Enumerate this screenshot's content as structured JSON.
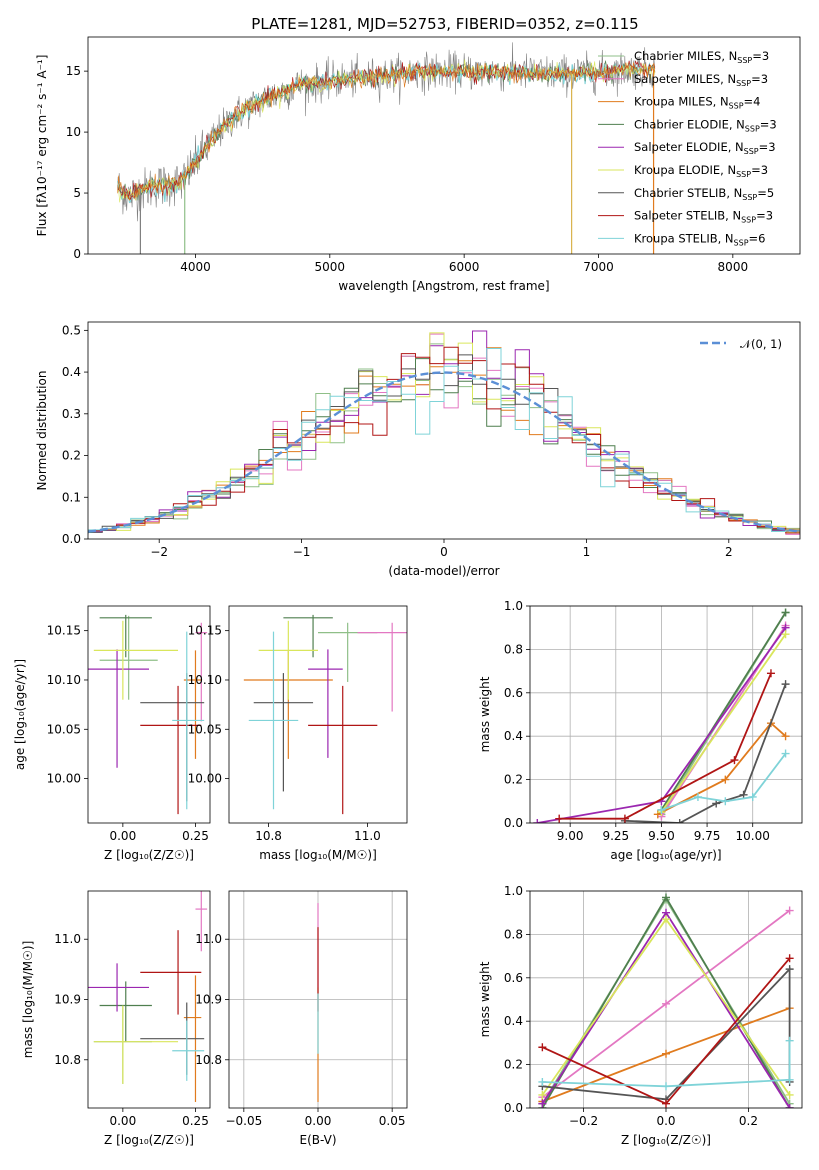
{
  "figure": {
    "title": "PLATE=1281, MJD=52753, FIBERID=0352, z=0.115"
  },
  "models": [
    {
      "name": "Chabrier MILES",
      "nssp": "3",
      "color": "#8fbf88"
    },
    {
      "name": "Salpeter MILES",
      "nssp": "3",
      "color": "#e377c2"
    },
    {
      "name": "Kroupa MILES",
      "nssp": "4",
      "color": "#e07b1e"
    },
    {
      "name": "Chabrier ELODIE",
      "nssp": "3",
      "color": "#4f7f4f"
    },
    {
      "name": "Salpeter ELODIE",
      "nssp": "3",
      "color": "#9b27b0"
    },
    {
      "name": "Kroupa ELODIE",
      "nssp": "3",
      "color": "#d9e65c"
    },
    {
      "name": "Chabrier STELIB",
      "nssp": "5",
      "color": "#555555"
    },
    {
      "name": "Salpeter STELIB",
      "nssp": "3",
      "color": "#b01515"
    },
    {
      "name": "Kroupa STELIB",
      "nssp": "6",
      "color": "#7fd3d8"
    }
  ],
  "legend_nssp_prefix": "N",
  "legend_nssp_sub": "SSP",
  "chart_data": [
    {
      "id": "spectrum",
      "type": "line",
      "xlabel": "wavelength [Angstrom, rest frame]",
      "ylabel": "Flux [fλ10⁻¹⁷ erg cm⁻² s⁻¹ A⁻¹]",
      "xlim": [
        3200,
        8500
      ],
      "ylim": [
        0,
        17.8
      ],
      "xticks": [
        4000,
        5000,
        6000,
        7000,
        8000
      ],
      "yticks": [
        0,
        5,
        10,
        15
      ],
      "legend": "right",
      "curve": {
        "x": [
          3420,
          3500,
          3600,
          3700,
          3800,
          3900,
          4000,
          4100,
          4200,
          4300,
          4400,
          4500,
          4600,
          4700,
          4800,
          4900,
          5000,
          5200,
          5400,
          5600,
          5800,
          6000,
          6200,
          6400,
          6600,
          6800,
          7000,
          7200,
          7400
        ],
        "y": [
          5.5,
          4.7,
          5.2,
          5.6,
          5.7,
          5.9,
          7.5,
          9.0,
          10.3,
          11.4,
          12.0,
          12.6,
          13.1,
          13.5,
          13.9,
          14.0,
          14.2,
          14.4,
          14.6,
          14.9,
          15.0,
          15.0,
          14.9,
          14.9,
          14.8,
          14.8,
          14.9,
          15.1,
          15.2
        ]
      }
    },
    {
      "id": "residuals",
      "type": "bar",
      "xlabel": "(data-model)/error",
      "ylabel": "Normed distribution",
      "xlim": [
        -2.5,
        2.5
      ],
      "ylim": [
        0,
        0.52
      ],
      "xticks": [
        -2,
        -1,
        0,
        1,
        2
      ],
      "yticks": [
        0.0,
        0.1,
        0.2,
        0.3,
        0.4,
        0.5
      ],
      "legend_label": "𝒩(0, 1)",
      "legend": "top-right",
      "bin_width": 0.1
    },
    {
      "id": "age-vs-Z",
      "type": "scatter",
      "xlabel": "Z [log₁₀(Z/Z☉)]",
      "ylabel": "age  [log₁₀(age/yr)]",
      "xlim": [
        -0.12,
        0.3
      ],
      "ylim": [
        9.955,
        10.175
      ],
      "xticks": [
        0.0,
        0.25
      ],
      "yticks": [
        10.0,
        10.05,
        10.1,
        10.15
      ]
    },
    {
      "id": "age-vs-mass",
      "type": "scatter",
      "xlabel": "mass [log₁₀(M/M☉)]",
      "ylabel": "",
      "xlim": [
        10.72,
        11.08
      ],
      "ylim": [
        9.955,
        10.175
      ],
      "xticks": [
        10.8,
        11.0
      ],
      "yticks": [
        10.0,
        10.05,
        10.1,
        10.15
      ]
    },
    {
      "id": "weight-vs-age",
      "type": "line",
      "xlabel": "age  [log₁₀(age/yr)]",
      "ylabel": "mass weight",
      "xlim": [
        8.78,
        10.27
      ],
      "ylim": [
        0,
        1
      ],
      "xticks": [
        9.0,
        9.25,
        9.5,
        9.75,
        10.0
      ],
      "yticks": [
        0.0,
        0.2,
        0.4,
        0.6,
        0.8,
        1.0
      ],
      "grid": true,
      "series": [
        {
          "model": 0,
          "points": [
            [
              9.5,
              0.04
            ],
            [
              10.18,
              0.97
            ]
          ]
        },
        {
          "model": 1,
          "points": [
            [
              9.5,
              0.03
            ],
            [
              10.18,
              0.91
            ]
          ]
        },
        {
          "model": 2,
          "points": [
            [
              9.48,
              0.04
            ],
            [
              9.85,
              0.2
            ],
            [
              10.1,
              0.46
            ],
            [
              10.18,
              0.4
            ]
          ]
        },
        {
          "model": 3,
          "points": [
            [
              9.5,
              0.06
            ],
            [
              10.18,
              0.97
            ]
          ]
        },
        {
          "model": 4,
          "points": [
            [
              8.82,
              0.0
            ],
            [
              9.5,
              0.1
            ],
            [
              10.18,
              0.9
            ]
          ]
        },
        {
          "model": 5,
          "points": [
            [
              9.5,
              0.05
            ],
            [
              10.18,
              0.87
            ]
          ]
        },
        {
          "model": 6,
          "points": [
            [
              9.3,
              0.01
            ],
            [
              9.6,
              0.0
            ],
            [
              9.8,
              0.09
            ],
            [
              9.95,
              0.13
            ],
            [
              10.18,
              0.64
            ]
          ]
        },
        {
          "model": 7,
          "points": [
            [
              8.94,
              0.02
            ],
            [
              9.3,
              0.02
            ],
            [
              9.9,
              0.29
            ],
            [
              10.1,
              0.69
            ]
          ]
        },
        {
          "model": 8,
          "points": [
            [
              9.5,
              0.06
            ],
            [
              9.7,
              0.12
            ],
            [
              9.85,
              0.1
            ],
            [
              10.0,
              0.12
            ],
            [
              10.18,
              0.32
            ]
          ]
        }
      ]
    },
    {
      "id": "mass-vs-Z",
      "type": "scatter",
      "xlabel": "Z [log₁₀(Z/Z☉)]",
      "ylabel": "mass [log₁₀(M/M☉)]",
      "xlim": [
        -0.12,
        0.3
      ],
      "ylim": [
        10.72,
        11.08
      ],
      "xticks": [
        0.0,
        0.25
      ],
      "yticks": [
        10.8,
        10.9,
        11.0
      ]
    },
    {
      "id": "mass-vs-ebv",
      "type": "scatter",
      "xlabel": "E(B-V)",
      "ylabel": "",
      "xlim": [
        -0.06,
        0.06
      ],
      "ylim": [
        10.72,
        11.08
      ],
      "xticks": [
        -0.05,
        0.0,
        0.05
      ],
      "yticks": [
        10.8,
        10.9,
        11.0
      ],
      "grid": true
    },
    {
      "id": "weight-vs-Z",
      "type": "line",
      "xlabel": "Z [log₁₀(Z/Z☉)]",
      "ylabel": "mass weight",
      "xlim": [
        -0.33,
        0.33
      ],
      "ylim": [
        0,
        1
      ],
      "xticks": [
        -0.2,
        0.0,
        0.2
      ],
      "yticks": [
        0.0,
        0.2,
        0.4,
        0.6,
        0.8,
        1.0
      ],
      "grid": true,
      "series": [
        {
          "model": 0,
          "points": [
            [
              -0.3,
              0.02
            ],
            [
              0.0,
              0.96
            ],
            [
              0.3,
              0.02
            ]
          ]
        },
        {
          "model": 1,
          "points": [
            [
              -0.3,
              0.05
            ],
            [
              0.0,
              0.48
            ],
            [
              0.3,
              0.91
            ]
          ]
        },
        {
          "model": 2,
          "points": [
            [
              -0.3,
              0.03
            ],
            [
              0.0,
              0.25
            ],
            [
              0.3,
              0.46
            ]
          ]
        },
        {
          "model": 3,
          "points": [
            [
              -0.3,
              0.0
            ],
            [
              0.0,
              0.97
            ],
            [
              0.3,
              0.0
            ]
          ]
        },
        {
          "model": 4,
          "points": [
            [
              -0.3,
              0.02
            ],
            [
              0.0,
              0.9
            ],
            [
              0.3,
              0.0
            ]
          ]
        },
        {
          "model": 5,
          "points": [
            [
              -0.3,
              0.06
            ],
            [
              0.0,
              0.87
            ],
            [
              0.3,
              0.06
            ]
          ]
        },
        {
          "model": 6,
          "points": [
            [
              -0.3,
              0.1
            ],
            [
              0.0,
              0.04
            ],
            [
              0.3,
              0.64
            ],
            [
              0.3,
              0.12
            ]
          ]
        },
        {
          "model": 7,
          "points": [
            [
              -0.3,
              0.28
            ],
            [
              0.0,
              0.02
            ],
            [
              0.3,
              0.69
            ]
          ]
        },
        {
          "model": 8,
          "points": [
            [
              -0.3,
              0.12
            ],
            [
              0.0,
              0.1
            ],
            [
              0.3,
              0.13
            ],
            [
              0.3,
              0.31
            ]
          ]
        }
      ]
    }
  ],
  "errorbars": {
    "age-vs-Z": [
      {
        "model": 0,
        "x": 0.02,
        "xerr": [
          0.1,
          0.1
        ],
        "y": 10.12,
        "yerr": [
          0.04,
          0.045
        ]
      },
      {
        "model": 1,
        "x": 0.27,
        "xerr": [
          0.02,
          0.02
        ],
        "y": 10.148,
        "yerr": [
          0.09,
          0.01
        ]
      },
      {
        "model": 2,
        "x": 0.25,
        "xerr": [
          0.04,
          0.02
        ],
        "y": 10.1,
        "yerr": [
          0.08,
          0.03
        ]
      },
      {
        "model": 3,
        "x": 0.01,
        "xerr": [
          0.09,
          0.09
        ],
        "y": 10.163,
        "yerr": [
          0.04,
          0.003
        ]
      },
      {
        "model": 4,
        "x": -0.02,
        "xerr": [
          0.1,
          0.11
        ],
        "y": 10.111,
        "yerr": [
          0.1,
          0.02
        ]
      },
      {
        "model": 5,
        "x": 0.0,
        "xerr": [
          0.1,
          0.19
        ],
        "y": 10.13,
        "yerr": [
          0.05,
          0.03
        ]
      },
      {
        "model": 6,
        "x": 0.22,
        "xerr": [
          0.16,
          0.06
        ],
        "y": 10.077,
        "yerr": [
          0.1,
          0.03
        ]
      },
      {
        "model": 7,
        "x": 0.19,
        "xerr": [
          0.13,
          0.08
        ],
        "y": 10.054,
        "yerr": [
          0.09,
          0.04
        ]
      },
      {
        "model": 8,
        "x": 0.22,
        "xerr": [
          0.05,
          0.06
        ],
        "y": 10.059,
        "yerr": [
          0.09,
          0.09
        ]
      }
    ],
    "age-vs-mass": [
      {
        "model": 0,
        "x": 10.96,
        "xerr": [
          0.06,
          0.06
        ],
        "y": 10.148,
        "yerr": [
          0.05,
          0.01
        ]
      },
      {
        "model": 1,
        "x": 11.05,
        "xerr": [
          0.07,
          0.07
        ],
        "y": 10.148,
        "yerr": [
          0.08,
          0.01
        ]
      },
      {
        "model": 2,
        "x": 10.84,
        "xerr": [
          0.09,
          0.09
        ],
        "y": 10.1,
        "yerr": [
          0.08,
          0.03
        ]
      },
      {
        "model": 3,
        "x": 10.89,
        "xerr": [
          0.06,
          0.04
        ],
        "y": 10.163,
        "yerr": [
          0.04,
          0.003
        ]
      },
      {
        "model": 4,
        "x": 10.92,
        "xerr": [
          0.04,
          0.03
        ],
        "y": 10.111,
        "yerr": [
          0.09,
          0.02
        ]
      },
      {
        "model": 5,
        "x": 10.84,
        "xerr": [
          0.06,
          0.06
        ],
        "y": 10.13,
        "yerr": [
          0.05,
          0.03
        ]
      },
      {
        "model": 6,
        "x": 10.83,
        "xerr": [
          0.06,
          0.06
        ],
        "y": 10.077,
        "yerr": [
          0.09,
          0.03
        ]
      },
      {
        "model": 7,
        "x": 10.95,
        "xerr": [
          0.07,
          0.07
        ],
        "y": 10.054,
        "yerr": [
          0.09,
          0.04
        ]
      },
      {
        "model": 8,
        "x": 10.81,
        "xerr": [
          0.05,
          0.05
        ],
        "y": 10.059,
        "yerr": [
          0.09,
          0.09
        ]
      }
    ],
    "mass-vs-Z": [
      {
        "model": 0,
        "x": 0.0,
        "xerr": [
          0.1,
          0.1
        ],
        "y": 10.83,
        "yerr": [
          0.07,
          0.06
        ]
      },
      {
        "model": 1,
        "x": 0.27,
        "xerr": [
          0.02,
          0.02
        ],
        "y": 11.05,
        "yerr": [
          0.07,
          0.07
        ]
      },
      {
        "model": 2,
        "x": 0.25,
        "xerr": [
          0.04,
          0.02
        ],
        "y": 10.87,
        "yerr": [
          0.14,
          0.07
        ]
      },
      {
        "model": 3,
        "x": 0.01,
        "xerr": [
          0.09,
          0.09
        ],
        "y": 10.89,
        "yerr": [
          0.06,
          0.04
        ]
      },
      {
        "model": 4,
        "x": -0.02,
        "xerr": [
          0.1,
          0.11
        ],
        "y": 10.92,
        "yerr": [
          0.04,
          0.04
        ]
      },
      {
        "model": 5,
        "x": 0.0,
        "xerr": [
          0.1,
          0.19
        ],
        "y": 10.83,
        "yerr": [
          0.07,
          0.06
        ]
      },
      {
        "model": 6,
        "x": 0.22,
        "xerr": [
          0.16,
          0.06
        ],
        "y": 10.835,
        "yerr": [
          0.06,
          0.06
        ]
      },
      {
        "model": 7,
        "x": 0.19,
        "xerr": [
          0.13,
          0.08
        ],
        "y": 10.945,
        "yerr": [
          0.07,
          0.07
        ]
      },
      {
        "model": 8,
        "x": 0.22,
        "xerr": [
          0.05,
          0.06
        ],
        "y": 10.815,
        "yerr": [
          0.05,
          0.05
        ]
      }
    ],
    "mass-vs-ebv": [
      {
        "model": 1,
        "x": 0.0,
        "xerr": [
          0,
          0
        ],
        "y": 11.0,
        "yerr": [
          0.08,
          0.06
        ]
      },
      {
        "model": 2,
        "x": 0.0,
        "xerr": [
          0,
          0
        ],
        "y": 10.87,
        "yerr": [
          0.14,
          0.05
        ]
      },
      {
        "model": 7,
        "x": 0.0,
        "xerr": [
          0,
          0
        ],
        "y": 10.95,
        "yerr": [
          0.07,
          0.07
        ]
      },
      {
        "model": 8,
        "x": 0.0,
        "xerr": [
          0,
          0
        ],
        "y": 10.86,
        "yerr": [
          0.05,
          0.05
        ]
      }
    ]
  }
}
